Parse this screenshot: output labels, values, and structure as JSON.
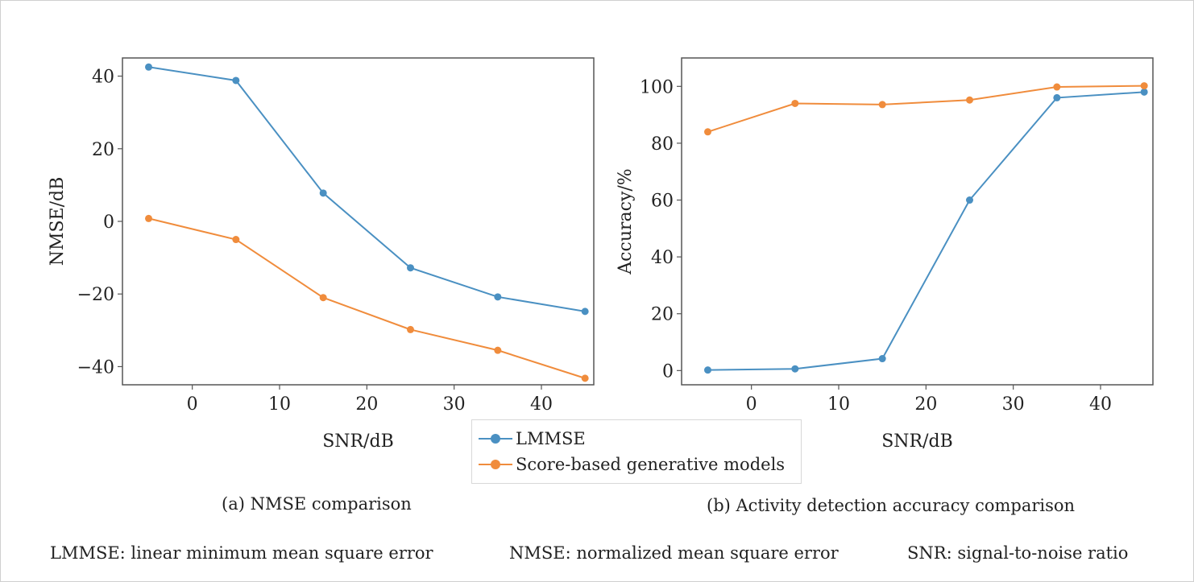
{
  "colors": {
    "lmmse": "#4a90c2",
    "score": "#f08c3c",
    "axis": "#555555"
  },
  "chart_data": [
    {
      "type": "line",
      "caption": "(a) NMSE comparison",
      "xlabel": "SNR/dB",
      "ylabel": "NMSE/dB",
      "xlim": [
        -8,
        46
      ],
      "ylim": [
        -45,
        45
      ],
      "xticks": [
        0,
        10,
        20,
        30,
        40
      ],
      "yticks": [
        -40,
        -20,
        0,
        20,
        40
      ],
      "ytick_labels": [
        "−40",
        "−20",
        "0",
        "20",
        "40"
      ],
      "xtick_labels": [
        "0",
        "10",
        "20",
        "30",
        "40"
      ],
      "x": [
        -5,
        5,
        15,
        25,
        35,
        45
      ],
      "series": [
        {
          "name": "LMMSE",
          "values": [
            42.5,
            38.8,
            7.8,
            -12.8,
            -20.8,
            -24.8
          ]
        },
        {
          "name": "Score-based generative models",
          "values": [
            0.8,
            -5.0,
            -21.0,
            -29.8,
            -35.5,
            -43.2
          ]
        }
      ]
    },
    {
      "type": "line",
      "caption": "(b) Activity detection accuracy comparison",
      "xlabel": "SNR/dB",
      "ylabel": "Accuracy/%",
      "xlim": [
        -8,
        46
      ],
      "ylim": [
        -5,
        110
      ],
      "xticks": [
        0,
        10,
        20,
        30,
        40
      ],
      "yticks": [
        0,
        20,
        40,
        60,
        80,
        100
      ],
      "ytick_labels": [
        "0",
        "20",
        "40",
        "60",
        "80",
        "100"
      ],
      "xtick_labels": [
        "0",
        "10",
        "20",
        "30",
        "40"
      ],
      "x": [
        -5,
        5,
        15,
        25,
        35,
        45
      ],
      "series": [
        {
          "name": "LMMSE",
          "values": [
            0.2,
            0.6,
            4.2,
            60.0,
            96.0,
            98.0
          ]
        },
        {
          "name": "Score-based generative models",
          "values": [
            84.0,
            94.0,
            93.6,
            95.2,
            99.8,
            100.2
          ]
        }
      ]
    }
  ],
  "legend": {
    "items": [
      "LMMSE",
      "Score-based generative models"
    ]
  },
  "footnotes": [
    "LMMSE: linear minimum mean square error",
    "NMSE: normalized mean square error",
    "SNR: signal-to-noise ratio"
  ]
}
